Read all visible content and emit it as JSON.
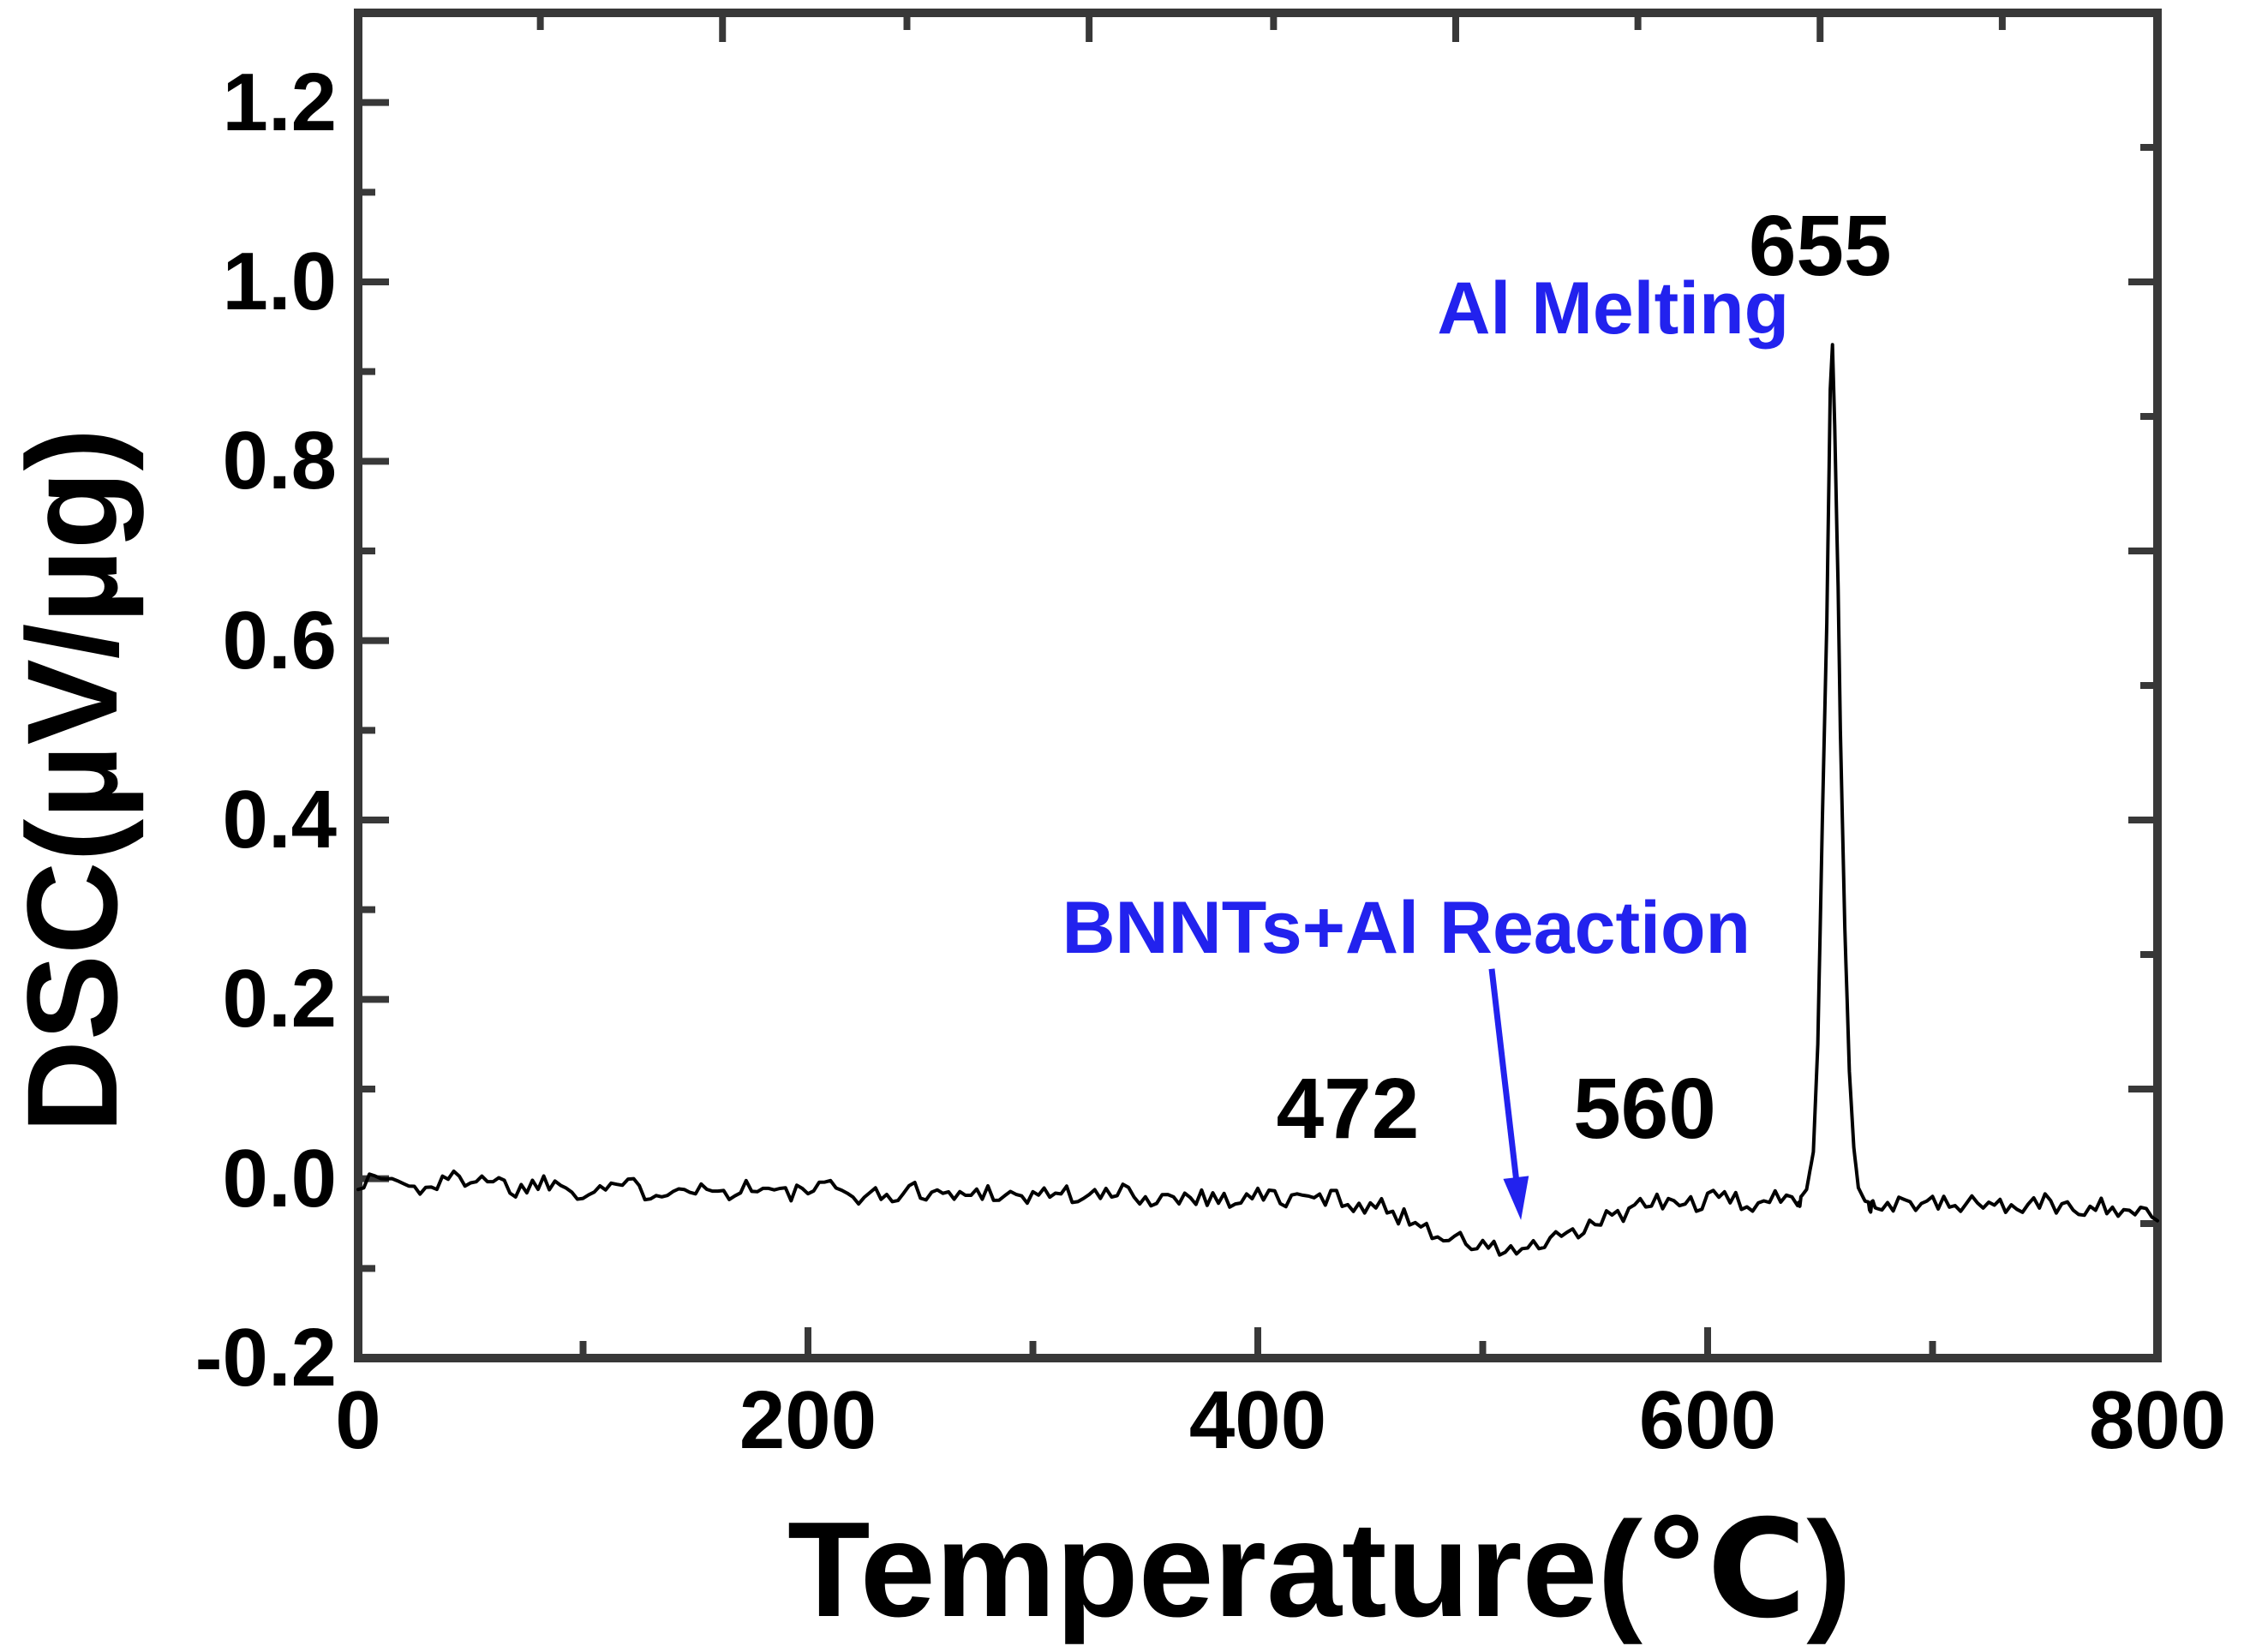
{
  "figure": {
    "background": "#ffffff",
    "curve_color": "#000000",
    "frame_color": "#383838",
    "annotation_blue": "#2222ee",
    "text_color": "#000000"
  },
  "chart_data": {
    "type": "line",
    "title": "",
    "xlabel": "Temperature(℃)",
    "ylabel": "DSC(µV/µg)",
    "xlim": [
      0,
      800
    ],
    "ylim": [
      -0.2,
      1.3
    ],
    "grid": false,
    "legend": false,
    "x_axis": {
      "major_ticks": [
        0,
        200,
        400,
        600,
        800
      ],
      "tick_labels": [
        "0",
        "200",
        "400",
        "600",
        "800"
      ],
      "minor_ticks": [
        100,
        300,
        500,
        700
      ]
    },
    "y_axis": {
      "major_ticks": [
        -0.2,
        0.0,
        0.2,
        0.4,
        0.6,
        0.8,
        1.0,
        1.2
      ],
      "tick_labels": [
        "-0.2",
        "0.0",
        "0.2",
        "0.4",
        "0.6",
        "0.8",
        "1.0",
        "1.2"
      ],
      "minor_ticks": [
        -0.1,
        0.1,
        0.3,
        0.5,
        0.7,
        0.9,
        1.1
      ]
    },
    "top_axis_ticks": {
      "major": [
        162,
        325,
        488,
        650
      ],
      "minor": [
        81,
        244,
        407,
        569,
        731
      ]
    },
    "right_axis_ticks": {
      "major": [
        0.1,
        0.4,
        0.7,
        1.0
      ],
      "minor": [
        -0.05,
        0.25,
        0.55,
        0.85,
        1.15
      ]
    },
    "series": [
      {
        "name": "DSC curve",
        "color": "#000000",
        "anchors": [
          [
            0,
            -0.005
          ],
          [
            12,
            0.003
          ],
          [
            25,
            -0.012
          ],
          [
            40,
            -0.002
          ],
          [
            55,
            0.004
          ],
          [
            70,
            -0.012
          ],
          [
            85,
            -0.002
          ],
          [
            100,
            -0.014
          ],
          [
            115,
            -0.005
          ],
          [
            130,
            -0.015
          ],
          [
            145,
            -0.006
          ],
          [
            160,
            -0.016
          ],
          [
            175,
            -0.008
          ],
          [
            190,
            -0.018
          ],
          [
            205,
            -0.01
          ],
          [
            220,
            -0.017
          ],
          [
            235,
            -0.02
          ],
          [
            250,
            -0.012
          ],
          [
            265,
            -0.02
          ],
          [
            280,
            -0.013
          ],
          [
            295,
            -0.021
          ],
          [
            310,
            -0.014
          ],
          [
            325,
            -0.022
          ],
          [
            340,
            -0.015
          ],
          [
            355,
            -0.023
          ],
          [
            370,
            -0.017
          ],
          [
            385,
            -0.024
          ],
          [
            400,
            -0.018
          ],
          [
            415,
            -0.024
          ],
          [
            430,
            -0.02
          ],
          [
            445,
            -0.027
          ],
          [
            455,
            -0.033
          ],
          [
            465,
            -0.042
          ],
          [
            472,
            -0.05
          ],
          [
            480,
            -0.06
          ],
          [
            490,
            -0.07
          ],
          [
            500,
            -0.076
          ],
          [
            510,
            -0.08
          ],
          [
            520,
            -0.078
          ],
          [
            530,
            -0.072
          ],
          [
            540,
            -0.063
          ],
          [
            550,
            -0.051
          ],
          [
            560,
            -0.04
          ],
          [
            568,
            -0.032
          ],
          [
            576,
            -0.027
          ],
          [
            590,
            -0.028
          ],
          [
            605,
            -0.023
          ],
          [
            618,
            -0.028
          ],
          [
            630,
            -0.024
          ],
          [
            640,
            -0.025
          ],
          [
            644,
            -0.012
          ],
          [
            647,
            0.03
          ],
          [
            649,
            0.15
          ],
          [
            651,
            0.4
          ],
          [
            653,
            0.62
          ],
          [
            654.5,
            0.88
          ],
          [
            655.5,
            0.93
          ],
          [
            656.5,
            0.84
          ],
          [
            658,
            0.66
          ],
          [
            659,
            0.5
          ],
          [
            661,
            0.28
          ],
          [
            663,
            0.12
          ],
          [
            665,
            0.035
          ],
          [
            667,
            -0.01
          ],
          [
            670,
            -0.025
          ],
          [
            678,
            -0.03
          ],
          [
            692,
            -0.025
          ],
          [
            706,
            -0.031
          ],
          [
            720,
            -0.026
          ],
          [
            734,
            -0.032
          ],
          [
            748,
            -0.027
          ],
          [
            762,
            -0.033
          ],
          [
            776,
            -0.028
          ],
          [
            788,
            -0.035
          ],
          [
            795,
            -0.042
          ],
          [
            800,
            -0.055
          ]
        ]
      }
    ],
    "noise": {
      "amplitude": 0.011,
      "step": 2.5,
      "fine_step": 0.5,
      "fine_range": [
        640,
        675
      ],
      "suppress_range": [
        641,
        672
      ],
      "seed": 1337
    },
    "key_points": {
      "al_melting_peak_c": 655,
      "reaction_onset_c": 472,
      "reaction_end_c": 560,
      "peak_height_uv_per_ug": 0.93,
      "dip_min_uv_per_ug": -0.08
    },
    "annotations": [
      {
        "text": "655",
        "kind": "num",
        "x": 650,
        "y": 1.04
      },
      {
        "text": "Al Melting",
        "kind": "blue",
        "x": 558,
        "y": 0.97
      },
      {
        "text": "BNNTs+Al Reaction",
        "kind": "blue",
        "x": 466,
        "y": 0.28
      },
      {
        "text": "472",
        "kind": "num",
        "x": 440,
        "y": 0.078
      },
      {
        "text": "560",
        "kind": "num",
        "x": 572,
        "y": 0.078
      }
    ],
    "arrow": {
      "from_x": 504,
      "from_y": 0.234,
      "to_x": 517,
      "to_y": -0.046,
      "color": "#2222ee"
    }
  }
}
